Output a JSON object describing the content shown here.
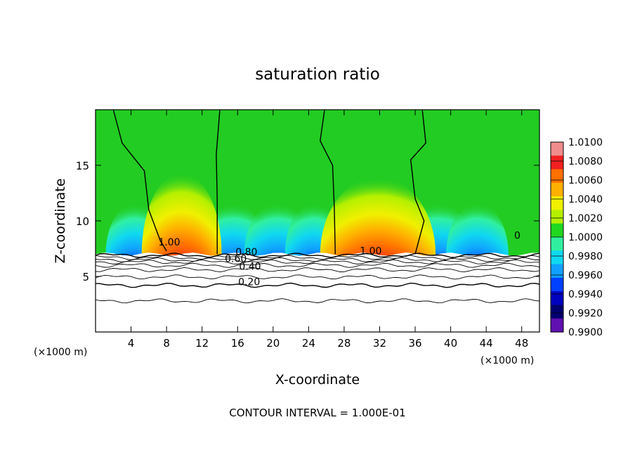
{
  "chart_data": {
    "type": "heatmap",
    "title": "saturation ratio",
    "xlabel": "X-coordinate",
    "ylabel": "Z-coordinate",
    "x_unit_left": "(×1000 m)",
    "x_unit_right": "(×1000 m)",
    "xlim": [
      0,
      50
    ],
    "ylim": [
      0,
      20
    ],
    "x_ticks": [
      4,
      8,
      12,
      16,
      20,
      24,
      28,
      32,
      36,
      40,
      44,
      48
    ],
    "y_ticks": [
      5,
      10,
      15
    ],
    "colorbar": {
      "labels": [
        "1.0100",
        "1.0080",
        "1.0060",
        "1.0040",
        "1.0020",
        "1.0000",
        "0.9980",
        "0.9960",
        "0.9940",
        "0.9920",
        "0.9900"
      ],
      "colors": [
        "#f08c8c",
        "#f02020",
        "#ff7000",
        "#ffb000",
        "#f0f000",
        "#b4f000",
        "#20d820",
        "#30f0a0",
        "#10d8f0",
        "#10a0ff",
        "#0040ff",
        "#0000c0",
        "#000070",
        "#6010b0"
      ]
    },
    "background_color": "#22cc22",
    "contour_labels": [
      {
        "text": "1.00",
        "x": 8.3,
        "y": 7.8
      },
      {
        "text": "0.80",
        "x": 17.0,
        "y": 6.9
      },
      {
        "text": "0.60",
        "x": 15.8,
        "y": 6.3
      },
      {
        "text": "0.40",
        "x": 17.4,
        "y": 5.6
      },
      {
        "text": "0.20",
        "x": 17.3,
        "y": 4.2
      },
      {
        "text": "1.00",
        "x": 31.0,
        "y": 7.0
      },
      {
        "text": "0",
        "x": 47.5,
        "y": 8.4
      }
    ],
    "footer": "CONTOUR INTERVAL = 1.000E-01"
  }
}
